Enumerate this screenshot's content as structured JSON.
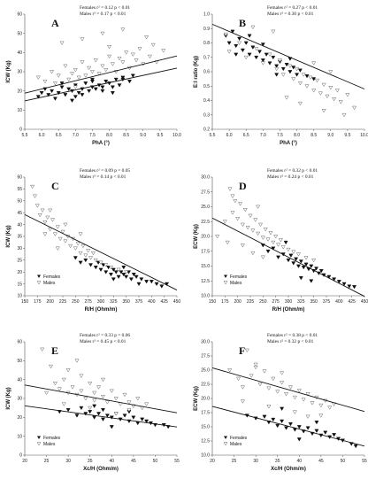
{
  "legend": {
    "females": "Females",
    "males": "Males"
  },
  "chart_data": [
    {
      "type": "scatter",
      "panel": "A",
      "xlabel": "PhA (°)",
      "ylabel": "ICW (Kg)",
      "xlim": [
        5.5,
        10.0
      ],
      "ylim": [
        0,
        60
      ],
      "xticks": [
        "5.5",
        "6.0",
        "6.5",
        "7.0",
        "7.5",
        "8.0",
        "8.5",
        "9.0",
        "9.5",
        "10.0"
      ],
      "yticks": [
        "0",
        "10",
        "20",
        "30",
        "40",
        "50",
        "60"
      ],
      "stats": [
        "Females r² = 0.12 p < 0.01",
        "Males r² = 0.17 p < 0.01"
      ],
      "series": [
        {
          "name": "Females",
          "x": [
            5.9,
            6.0,
            6.2,
            6.3,
            6.5,
            6.6,
            6.7,
            6.8,
            6.9,
            7.0,
            7.0,
            7.1,
            7.2,
            7.3,
            7.4,
            7.5,
            7.5,
            7.6,
            7.7,
            7.8,
            7.9,
            8.0,
            8.1,
            8.2,
            8.3,
            8.4,
            8.6,
            8.7,
            6.1,
            6.4,
            6.6,
            6.9,
            7.2,
            7.5,
            7.8,
            8.1,
            8.4
          ],
          "y": [
            17,
            19,
            18,
            20,
            19,
            22,
            18,
            21,
            20,
            23,
            17,
            19,
            21,
            24,
            20,
            22,
            26,
            21,
            23,
            20,
            25,
            24,
            22,
            26,
            23,
            27,
            25,
            28,
            21,
            16,
            24,
            15,
            18,
            25,
            22,
            19,
            26
          ]
        },
        {
          "name": "Males",
          "x": [
            5.9,
            6.1,
            6.3,
            6.4,
            6.5,
            6.7,
            6.8,
            6.9,
            7.0,
            7.1,
            7.2,
            7.3,
            7.4,
            7.5,
            7.6,
            7.7,
            7.8,
            7.9,
            8.0,
            8.1,
            8.2,
            8.3,
            8.4,
            8.5,
            8.6,
            8.7,
            8.8,
            8.9,
            9.0,
            9.2,
            9.3,
            9.4,
            9.6,
            6.6,
            7.2,
            7.8,
            8.4,
            9.1,
            7.0,
            8.0
          ],
          "y": [
            27,
            25,
            30,
            24,
            28,
            33,
            26,
            29,
            31,
            27,
            35,
            28,
            32,
            30,
            36,
            29,
            33,
            31,
            38,
            34,
            30,
            37,
            35,
            40,
            32,
            39,
            36,
            42,
            34,
            38,
            44,
            35,
            41,
            45,
            47,
            50,
            52,
            48,
            22,
            43
          ]
        }
      ],
      "fits": [
        {
          "name": "Females",
          "intercept": -6.1,
          "slope": 3.8
        },
        {
          "name": "Males",
          "intercept": -4.8,
          "slope": 4.3
        }
      ]
    },
    {
      "type": "scatter",
      "panel": "B",
      "xlabel": "PhA (°)",
      "ylabel": "E:I ratio (Kg)",
      "xlim": [
        5.5,
        10.0
      ],
      "ylim": [
        0.2,
        1.0
      ],
      "xticks": [
        "5.5",
        "6.0",
        "6.5",
        "7.0",
        "7.5",
        "8.0",
        "8.5",
        "9.0",
        "9.5",
        "10.0"
      ],
      "yticks": [
        "0.2",
        "0.3",
        "0.4",
        "0.5",
        "0.6",
        "0.7",
        "0.8",
        "0.9",
        "1.0"
      ],
      "stats": [
        "Females r² = 0.27 p < 0.01",
        "Males r² = 0.30 p < 0.01"
      ],
      "series": [
        {
          "name": "Females",
          "x": [
            5.9,
            6.0,
            6.1,
            6.2,
            6.3,
            6.4,
            6.5,
            6.6,
            6.7,
            6.8,
            6.9,
            7.0,
            7.1,
            7.2,
            7.3,
            7.4,
            7.5,
            7.6,
            7.7,
            7.8,
            7.9,
            8.0,
            8.1,
            8.3,
            8.5,
            6.2,
            6.6,
            7.0,
            7.4,
            7.8
          ],
          "y": [
            0.85,
            0.8,
            0.88,
            0.78,
            0.83,
            0.75,
            0.8,
            0.72,
            0.77,
            0.7,
            0.74,
            0.68,
            0.72,
            0.66,
            0.7,
            0.64,
            0.67,
            0.62,
            0.65,
            0.6,
            0.63,
            0.58,
            0.61,
            0.57,
            0.55,
            0.72,
            0.85,
            0.79,
            0.58,
            0.69
          ]
        },
        {
          "name": "Males",
          "x": [
            5.9,
            6.0,
            6.3,
            6.5,
            6.8,
            7.0,
            7.2,
            7.4,
            7.5,
            7.6,
            7.8,
            7.9,
            8.0,
            8.1,
            8.2,
            8.3,
            8.4,
            8.5,
            8.6,
            8.7,
            8.8,
            8.9,
            9.0,
            9.1,
            9.2,
            9.3,
            9.5,
            9.7,
            6.7,
            7.3,
            7.7,
            8.1,
            8.8,
            9.4,
            8.5,
            9.0
          ],
          "y": [
            0.86,
            0.74,
            0.8,
            0.7,
            0.76,
            0.66,
            0.72,
            0.62,
            0.68,
            0.58,
            0.64,
            0.55,
            0.62,
            0.52,
            0.58,
            0.5,
            0.56,
            0.47,
            0.54,
            0.45,
            0.51,
            0.43,
            0.49,
            0.41,
            0.47,
            0.39,
            0.44,
            0.35,
            0.91,
            0.88,
            0.42,
            0.38,
            0.33,
            0.3,
            0.66,
            0.6
          ]
        }
      ],
      "fits": [
        {
          "name": "Males",
          "intercept": 1.48,
          "slope": -0.1
        }
      ]
    },
    {
      "type": "scatter",
      "panel": "C",
      "xlabel": "R/H (Ohm/m)",
      "ylabel": "ICW (Kg)",
      "xlim": [
        150,
        450
      ],
      "ylim": [
        10,
        60
      ],
      "xticks": [
        "150",
        "175",
        "200",
        "225",
        "250",
        "275",
        "300",
        "325",
        "350",
        "375",
        "400",
        "425",
        "450"
      ],
      "yticks": [
        "10",
        "15",
        "20",
        "25",
        "30",
        "35",
        "40",
        "45",
        "50",
        "55",
        "60"
      ],
      "stats": [
        "Females r² = 0.09 p = 0.05",
        "Males r² = 0.14 p < 0.01"
      ],
      "series": [
        {
          "name": "Females",
          "x": [
            250,
            260,
            270,
            280,
            290,
            300,
            305,
            310,
            315,
            320,
            325,
            330,
            335,
            340,
            345,
            350,
            355,
            360,
            365,
            370,
            380,
            390,
            400,
            410,
            420,
            430,
            295,
            325,
            345,
            375
          ],
          "y": [
            26,
            24,
            25,
            23,
            22,
            21,
            23,
            20,
            22,
            19,
            21,
            20,
            18,
            20,
            19,
            18,
            20,
            17,
            19,
            18,
            17,
            16,
            16,
            15,
            14,
            15,
            24,
            17,
            22,
            15
          ]
        },
        {
          "name": "Males",
          "x": [
            165,
            175,
            180,
            185,
            190,
            195,
            200,
            205,
            210,
            215,
            220,
            225,
            230,
            235,
            240,
            245,
            250,
            255,
            260,
            265,
            270,
            275,
            280,
            285,
            290,
            300,
            310,
            320,
            335,
            350,
            170,
            200,
            230,
            260,
            190,
            215
          ],
          "y": [
            56,
            48,
            44,
            46,
            41,
            43,
            38,
            42,
            36,
            39,
            34,
            37,
            33,
            35,
            31,
            34,
            30,
            32,
            28,
            31,
            27,
            29,
            26,
            28,
            25,
            24,
            23,
            22,
            21,
            20,
            52,
            46,
            40,
            36,
            36,
            30
          ]
        }
      ],
      "fits": [
        {
          "name": "All",
          "intercept": 60.1,
          "slope": -0.106
        }
      ]
    },
    {
      "type": "scatter",
      "panel": "D",
      "xlabel": "R/H (Ohm/m)",
      "ylabel": "ECW (Kg)",
      "xlim": [
        150,
        450
      ],
      "ylim": [
        10,
        30
      ],
      "xticks": [
        "150",
        "175",
        "200",
        "225",
        "250",
        "275",
        "300",
        "325",
        "350",
        "375",
        "400",
        "425",
        "450"
      ],
      "yticks": [
        "10.0",
        "12.5",
        "15.0",
        "17.5",
        "20.0",
        "22.5",
        "25.0",
        "27.5",
        "30.0"
      ],
      "stats": [
        "Females r² = 0.32 p < 0.01",
        "Males r² = 0.24 p < 0.01"
      ],
      "series": [
        {
          "name": "Females",
          "x": [
            250,
            260,
            270,
            280,
            290,
            300,
            305,
            310,
            315,
            320,
            325,
            330,
            335,
            340,
            345,
            350,
            355,
            360,
            365,
            370,
            380,
            390,
            400,
            410,
            420,
            430,
            295,
            325,
            345
          ],
          "y": [
            18.5,
            17.5,
            18,
            16.5,
            17,
            16,
            16.8,
            15.5,
            16.2,
            15,
            15.8,
            14.8,
            15.3,
            14.5,
            15,
            14.2,
            14.6,
            13.8,
            14.2,
            13.5,
            13.2,
            12.8,
            12.4,
            12,
            11.6,
            11.5,
            19,
            13,
            12.5
          ]
        },
        {
          "name": "Males",
          "x": [
            160,
            175,
            185,
            190,
            195,
            200,
            205,
            210,
            215,
            220,
            225,
            230,
            235,
            240,
            245,
            250,
            255,
            260,
            265,
            270,
            275,
            280,
            285,
            290,
            300,
            310,
            320,
            335,
            350,
            190,
            210,
            230,
            250,
            180,
            240
          ],
          "y": [
            20,
            22.5,
            28,
            24,
            26,
            23,
            25.5,
            22,
            24.5,
            21.5,
            23.5,
            21,
            22.8,
            20.5,
            22,
            19.8,
            21.2,
            19.5,
            20.6,
            19,
            20,
            18.6,
            19.4,
            18.2,
            17.8,
            17.4,
            17,
            16.4,
            16,
            26.8,
            18.5,
            17.2,
            16.5,
            19,
            25
          ]
        }
      ],
      "fits": [
        {
          "name": "All",
          "intercept": 29.7,
          "slope": -0.044
        }
      ]
    },
    {
      "type": "scatter",
      "panel": "E",
      "xlabel": "Xc/H (Ohm/m)",
      "ylabel": "ICW (Kg)",
      "xlim": [
        20,
        55
      ],
      "ylim": [
        0,
        60
      ],
      "xticks": [
        "20",
        "25",
        "30",
        "35",
        "40",
        "45",
        "50",
        "55"
      ],
      "yticks": [
        "0",
        "10",
        "20",
        "30",
        "40",
        "50",
        "60"
      ],
      "stats": [
        "Females r² = 0.33 p = 0.06",
        "Males r² = 0.45 p < 0.01"
      ],
      "series": [
        {
          "name": "Females",
          "x": [
            28,
            30,
            32,
            33,
            34,
            35,
            36,
            37,
            38,
            38,
            39,
            40,
            41,
            42,
            43,
            44,
            45,
            46,
            47,
            48,
            49,
            50,
            52,
            53,
            36,
            40,
            44
          ],
          "y": [
            23,
            24,
            21,
            25,
            22,
            23,
            20,
            22,
            24,
            19,
            21,
            20,
            22,
            19,
            21,
            18,
            20,
            17,
            19,
            18,
            17,
            16,
            16,
            15,
            26,
            15,
            23
          ]
        },
        {
          "name": "Males",
          "x": [
            24,
            26,
            27,
            28,
            29,
            30,
            30,
            31,
            32,
            33,
            33,
            34,
            35,
            36,
            36,
            37,
            38,
            39,
            40,
            41,
            42,
            43,
            44,
            45,
            46,
            47,
            48,
            25,
            29,
            32,
            35,
            38,
            41,
            44
          ],
          "y": [
            56,
            47,
            38,
            35,
            40,
            33,
            45,
            36,
            32,
            42,
            34,
            30,
            38,
            33,
            29,
            36,
            31,
            28,
            34,
            30,
            27,
            32,
            28,
            26,
            30,
            25,
            27,
            33,
            27,
            50,
            25,
            40,
            22,
            24
          ]
        }
      ],
      "fits": [
        {
          "name": "Males",
          "intercept": 45.5,
          "slope": -0.42
        },
        {
          "name": "Females",
          "intercept": 32.5,
          "slope": -0.32
        }
      ]
    },
    {
      "type": "scatter",
      "panel": "F",
      "xlabel": "Xc/H (Ohm/m)",
      "ylabel": "ECW (Kg)",
      "xlim": [
        20,
        55
      ],
      "ylim": [
        10,
        30
      ],
      "xticks": [
        "20",
        "25",
        "30",
        "35",
        "40",
        "45",
        "50",
        "55"
      ],
      "yticks": [
        "10.0",
        "12.5",
        "15.0",
        "17.5",
        "20.0",
        "22.5",
        "25.0",
        "27.5",
        "30.0"
      ],
      "stats": [
        "Females r² = 0.38 p < 0.01",
        "Males r² = 0.32 p < 0.01"
      ],
      "series": [
        {
          "name": "Females",
          "x": [
            28,
            30,
            32,
            33,
            34,
            35,
            36,
            37,
            38,
            39,
            40,
            41,
            42,
            43,
            44,
            45,
            46,
            47,
            48,
            49,
            50,
            52,
            53,
            36,
            40,
            44
          ],
          "y": [
            17,
            16.5,
            16.8,
            15.8,
            16.3,
            15.2,
            16,
            14.8,
            15.5,
            14.5,
            15,
            14.2,
            14.8,
            13.8,
            14.3,
            13.5,
            14,
            13.2,
            13.6,
            12.9,
            12.6,
            12,
            11.6,
            18.2,
            12.8,
            15.8
          ]
        },
        {
          "name": "Males",
          "x": [
            24,
            26,
            27,
            28,
            29,
            30,
            31,
            32,
            33,
            34,
            35,
            36,
            37,
            38,
            39,
            40,
            41,
            42,
            43,
            44,
            45,
            46,
            47,
            48,
            27,
            30,
            33,
            36,
            39,
            42,
            45
          ],
          "y": [
            25,
            23.5,
            22,
            28.5,
            24,
            25.5,
            22.5,
            24.8,
            21.8,
            23.5,
            21.2,
            22.8,
            20.8,
            22,
            20.2,
            21.4,
            19.8,
            20.8,
            19.2,
            20.2,
            18.8,
            19.6,
            18.4,
            19,
            19.5,
            26,
            18.6,
            24.5,
            17.6,
            16.8,
            17
          ]
        }
      ],
      "fits": [
        {
          "name": "Males",
          "intercept": 29.8,
          "slope": -0.22
        },
        {
          "name": "Females",
          "intercept": 22.6,
          "slope": -0.2
        }
      ]
    }
  ]
}
